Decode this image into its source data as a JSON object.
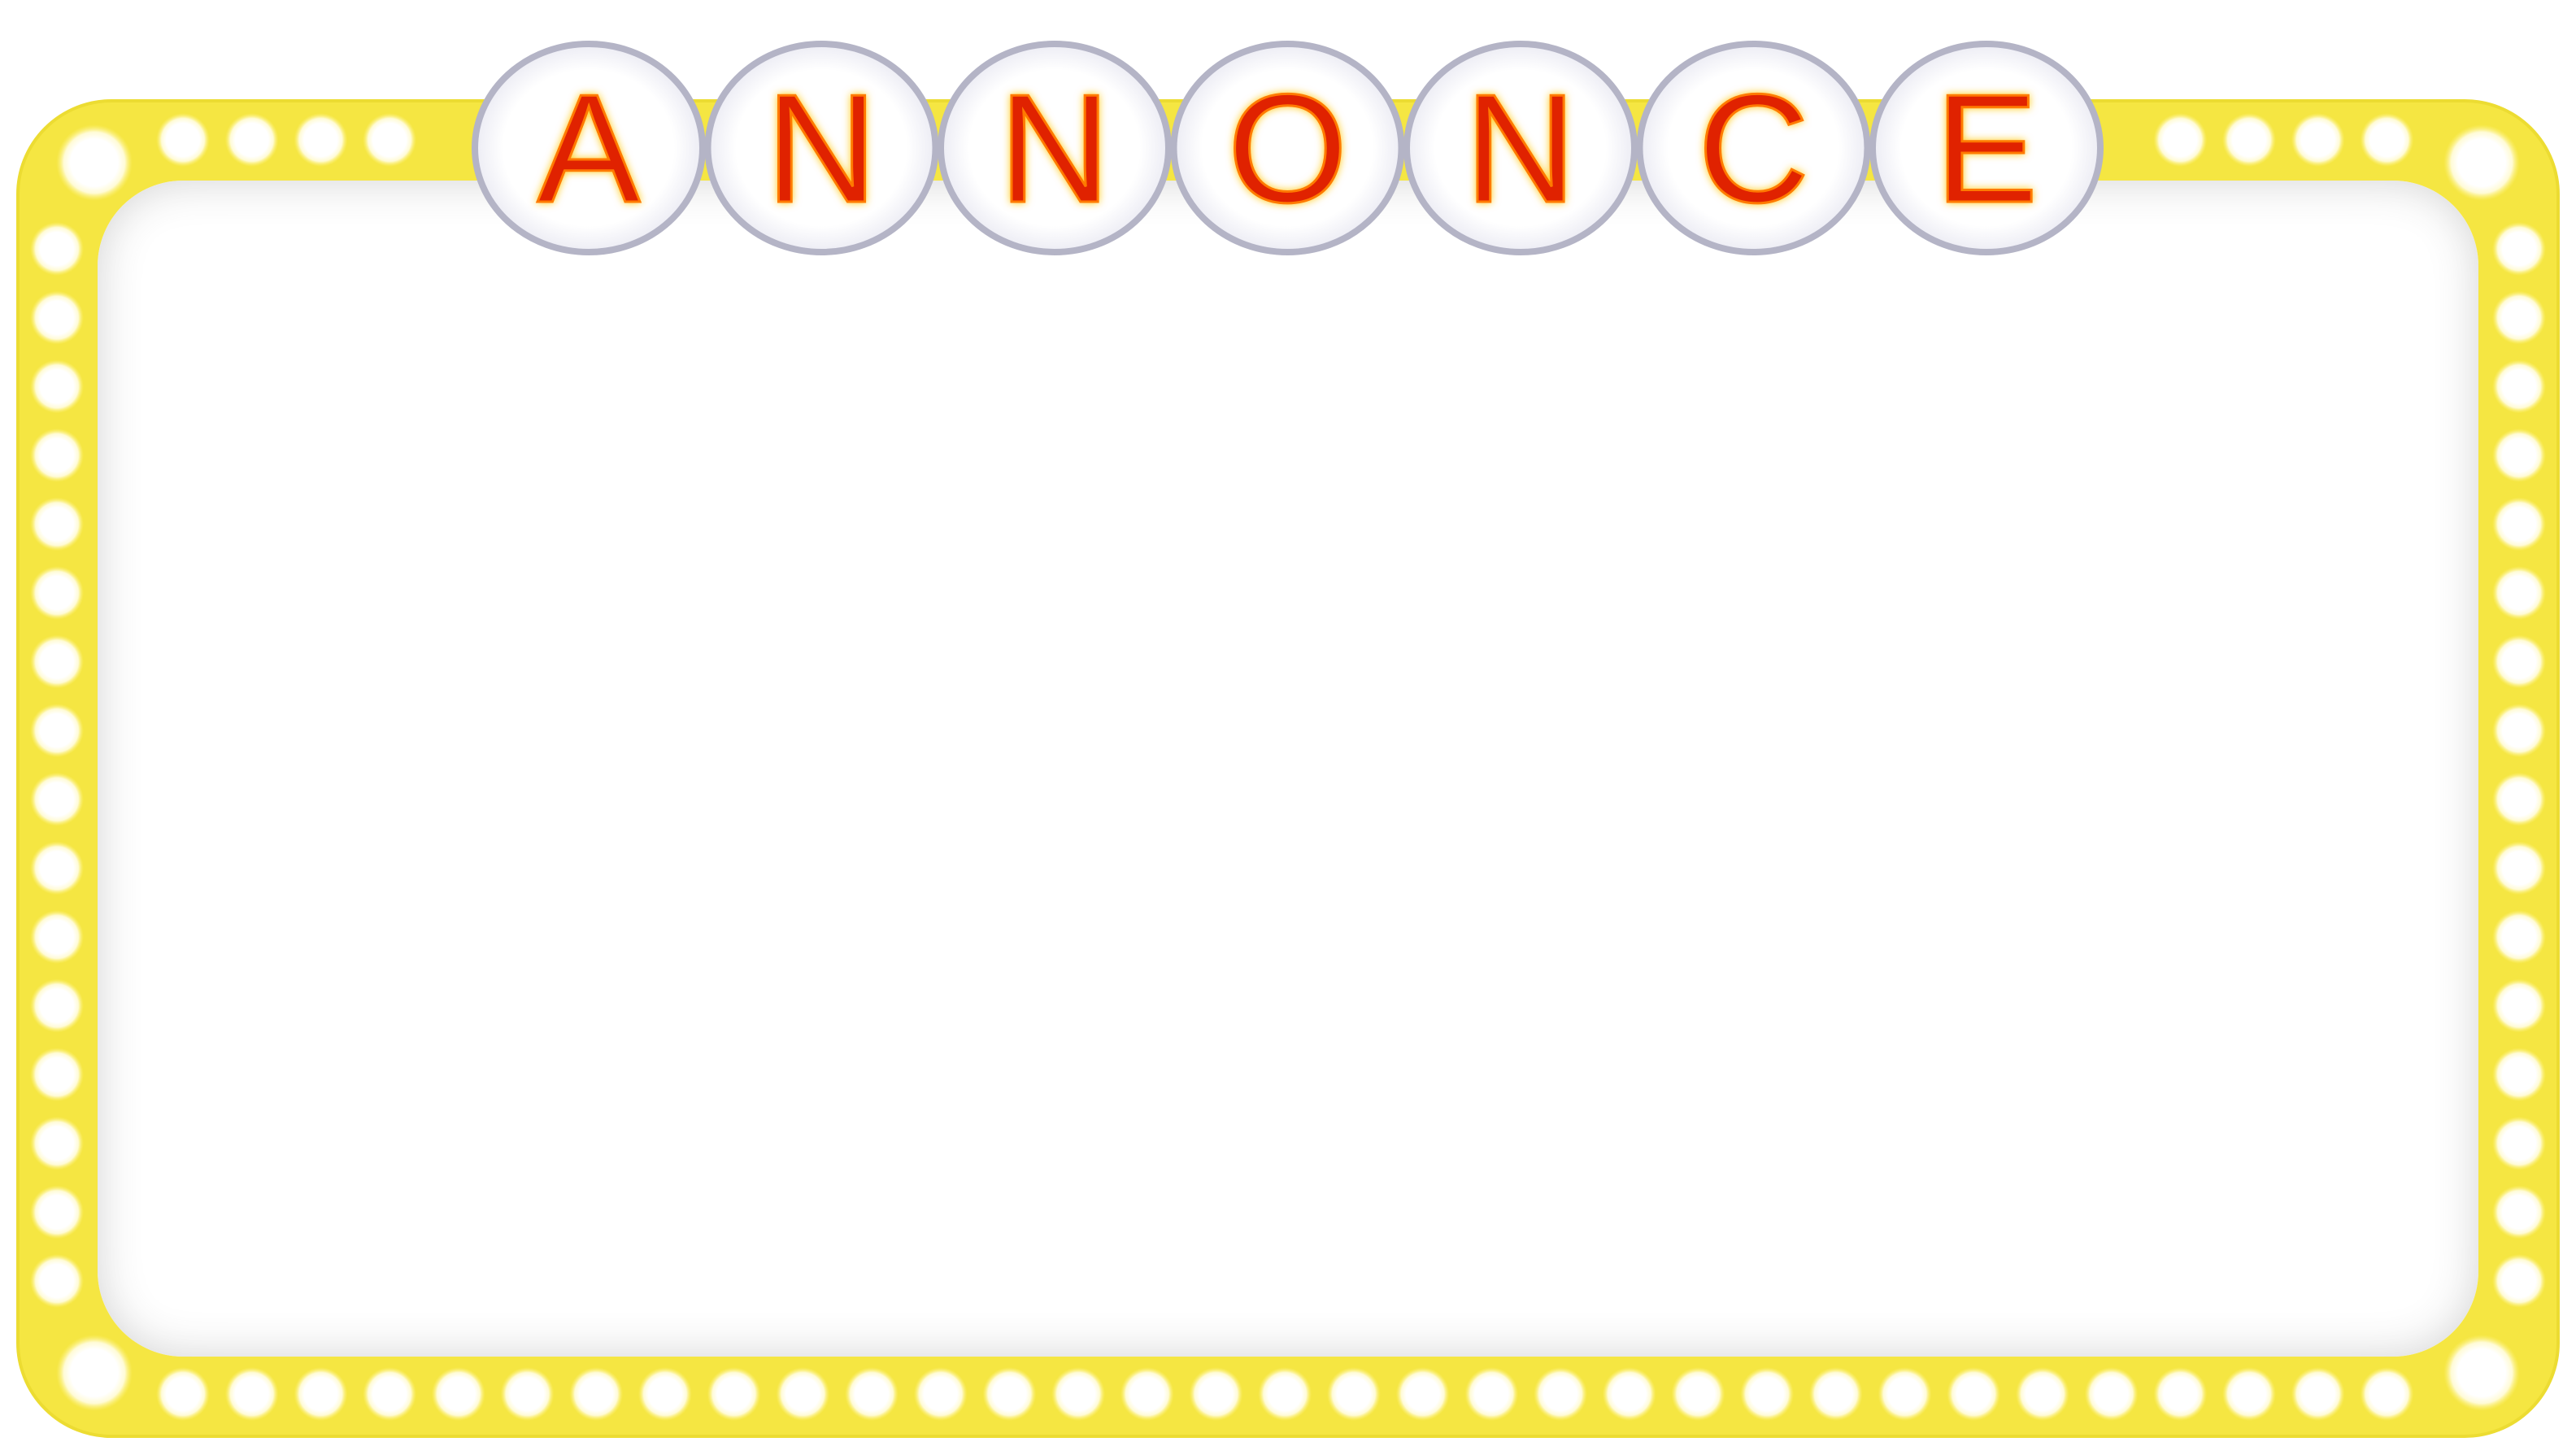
{
  "sign": {
    "letters": [
      "A",
      "N",
      "N",
      "O",
      "N",
      "C",
      "E"
    ]
  },
  "colors": {
    "frame": "#f5e642",
    "frame_edge": "#e8d92a",
    "bulb_glow": "#fffbd0",
    "bulb_core": "#ffffff",
    "panel": "#ffffff",
    "panel_shadow": "#d9d9d9",
    "badge_ring": "#b4b4c6",
    "badge_fill": "#ffffff",
    "letter_fill": "#e02000",
    "letter_glow": "#ffcc00"
  }
}
